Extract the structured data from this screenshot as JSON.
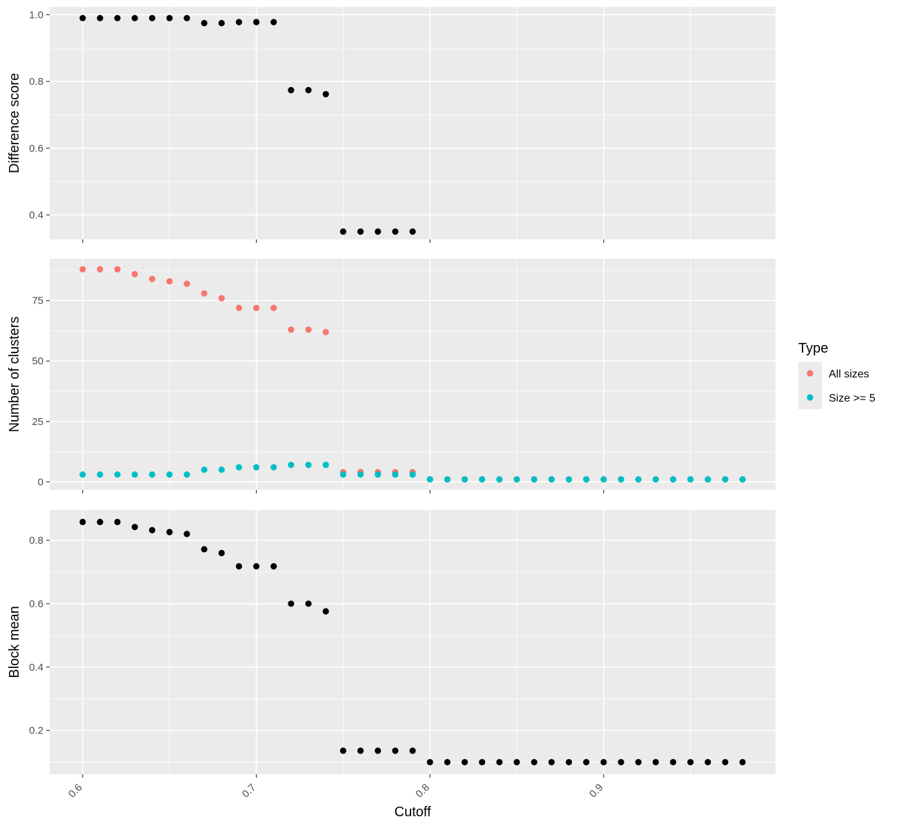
{
  "chart_data": {
    "type": "scatter",
    "xlabel": "Cutoff",
    "xlim": [
      0.581,
      0.999
    ],
    "xticks": [
      0.6,
      0.7,
      0.8,
      0.9
    ],
    "xtick_labels": [
      "0.6",
      "0.7",
      "0.8",
      "0.9"
    ],
    "grid": true,
    "legend": {
      "title": "Type",
      "placement": "right",
      "entries": [
        {
          "label": "All sizes",
          "color": "#F8766D"
        },
        {
          "label": "Size >= 5",
          "color": "#00BFC4"
        }
      ]
    },
    "panels": [
      {
        "ylabel": "Difference score",
        "ylim": [
          0.3265,
          1.0235
        ],
        "yticks": [
          0.4,
          0.6,
          0.8,
          1.0
        ],
        "ytick_labels": [
          "0.4",
          "0.6",
          "0.8",
          "1.0"
        ],
        "series": [
          {
            "color": "#000000",
            "x": [
              0.6,
              0.61,
              0.62,
              0.63,
              0.64,
              0.65,
              0.66,
              0.67,
              0.68,
              0.69,
              0.7,
              0.71,
              0.72,
              0.73,
              0.74,
              0.75,
              0.76,
              0.77,
              0.78,
              0.79
            ],
            "y": [
              0.99,
              0.99,
              0.99,
              0.99,
              0.99,
              0.99,
              0.99,
              0.975,
              0.975,
              0.978,
              0.978,
              0.978,
              0.774,
              0.774,
              0.762,
              0.35,
              0.35,
              0.35,
              0.35,
              0.35
            ]
          }
        ]
      },
      {
        "ylabel": "Number of clusters",
        "ylim": [
          -3.35,
          92.35
        ],
        "yticks": [
          0,
          25,
          50,
          75
        ],
        "ytick_labels": [
          "0",
          "25",
          "50",
          "75"
        ],
        "series": [
          {
            "name": "All sizes",
            "color": "#F8766D",
            "x": [
              0.6,
              0.61,
              0.62,
              0.63,
              0.64,
              0.65,
              0.66,
              0.67,
              0.68,
              0.69,
              0.7,
              0.71,
              0.72,
              0.73,
              0.74,
              0.75,
              0.76,
              0.77,
              0.78,
              0.79,
              0.8,
              0.81,
              0.82,
              0.83,
              0.84,
              0.85,
              0.86,
              0.87,
              0.88,
              0.89,
              0.9,
              0.91,
              0.92,
              0.93,
              0.94,
              0.95,
              0.96,
              0.97,
              0.98
            ],
            "y": [
              88,
              88,
              88,
              86,
              84,
              83,
              82,
              78,
              76,
              72,
              72,
              72,
              63,
              63,
              62,
              4,
              4,
              4,
              4,
              4,
              1,
              1,
              1,
              1,
              1,
              1,
              1,
              1,
              1,
              1,
              1,
              1,
              1,
              1,
              1,
              1,
              1,
              1,
              1
            ]
          },
          {
            "name": "Size >= 5",
            "color": "#00BFC4",
            "x": [
              0.6,
              0.61,
              0.62,
              0.63,
              0.64,
              0.65,
              0.66,
              0.67,
              0.68,
              0.69,
              0.7,
              0.71,
              0.72,
              0.73,
              0.74,
              0.75,
              0.76,
              0.77,
              0.78,
              0.79,
              0.8,
              0.81,
              0.82,
              0.83,
              0.84,
              0.85,
              0.86,
              0.87,
              0.88,
              0.89,
              0.9,
              0.91,
              0.92,
              0.93,
              0.94,
              0.95,
              0.96,
              0.97,
              0.98
            ],
            "y": [
              3,
              3,
              3,
              3,
              3,
              3,
              3,
              5,
              5,
              6,
              6,
              6,
              7,
              7,
              7,
              3,
              3,
              3,
              3,
              3,
              1,
              1,
              1,
              1,
              1,
              1,
              1,
              1,
              1,
              1,
              1,
              1,
              1,
              1,
              1,
              1,
              1,
              1,
              1
            ]
          }
        ]
      },
      {
        "ylabel": "Block mean",
        "ylim": [
          0.062,
          0.896
        ],
        "yticks": [
          0.2,
          0.4,
          0.6,
          0.8
        ],
        "ytick_labels": [
          "0.2",
          "0.4",
          "0.6",
          "0.8"
        ],
        "series": [
          {
            "color": "#000000",
            "x": [
              0.6,
              0.61,
              0.62,
              0.63,
              0.64,
              0.65,
              0.66,
              0.67,
              0.68,
              0.69,
              0.7,
              0.71,
              0.72,
              0.73,
              0.74,
              0.75,
              0.76,
              0.77,
              0.78,
              0.79,
              0.8,
              0.81,
              0.82,
              0.83,
              0.84,
              0.85,
              0.86,
              0.87,
              0.88,
              0.89,
              0.9,
              0.91,
              0.92,
              0.93,
              0.94,
              0.95,
              0.96,
              0.97,
              0.98
            ],
            "y": [
              0.858,
              0.858,
              0.858,
              0.842,
              0.832,
              0.826,
              0.82,
              0.772,
              0.76,
              0.718,
              0.718,
              0.718,
              0.6,
              0.6,
              0.576,
              0.136,
              0.136,
              0.136,
              0.136,
              0.136,
              0.1,
              0.1,
              0.1,
              0.1,
              0.1,
              0.1,
              0.1,
              0.1,
              0.1,
              0.1,
              0.1,
              0.1,
              0.1,
              0.1,
              0.1,
              0.1,
              0.1,
              0.1,
              0.1
            ]
          }
        ]
      }
    ]
  }
}
